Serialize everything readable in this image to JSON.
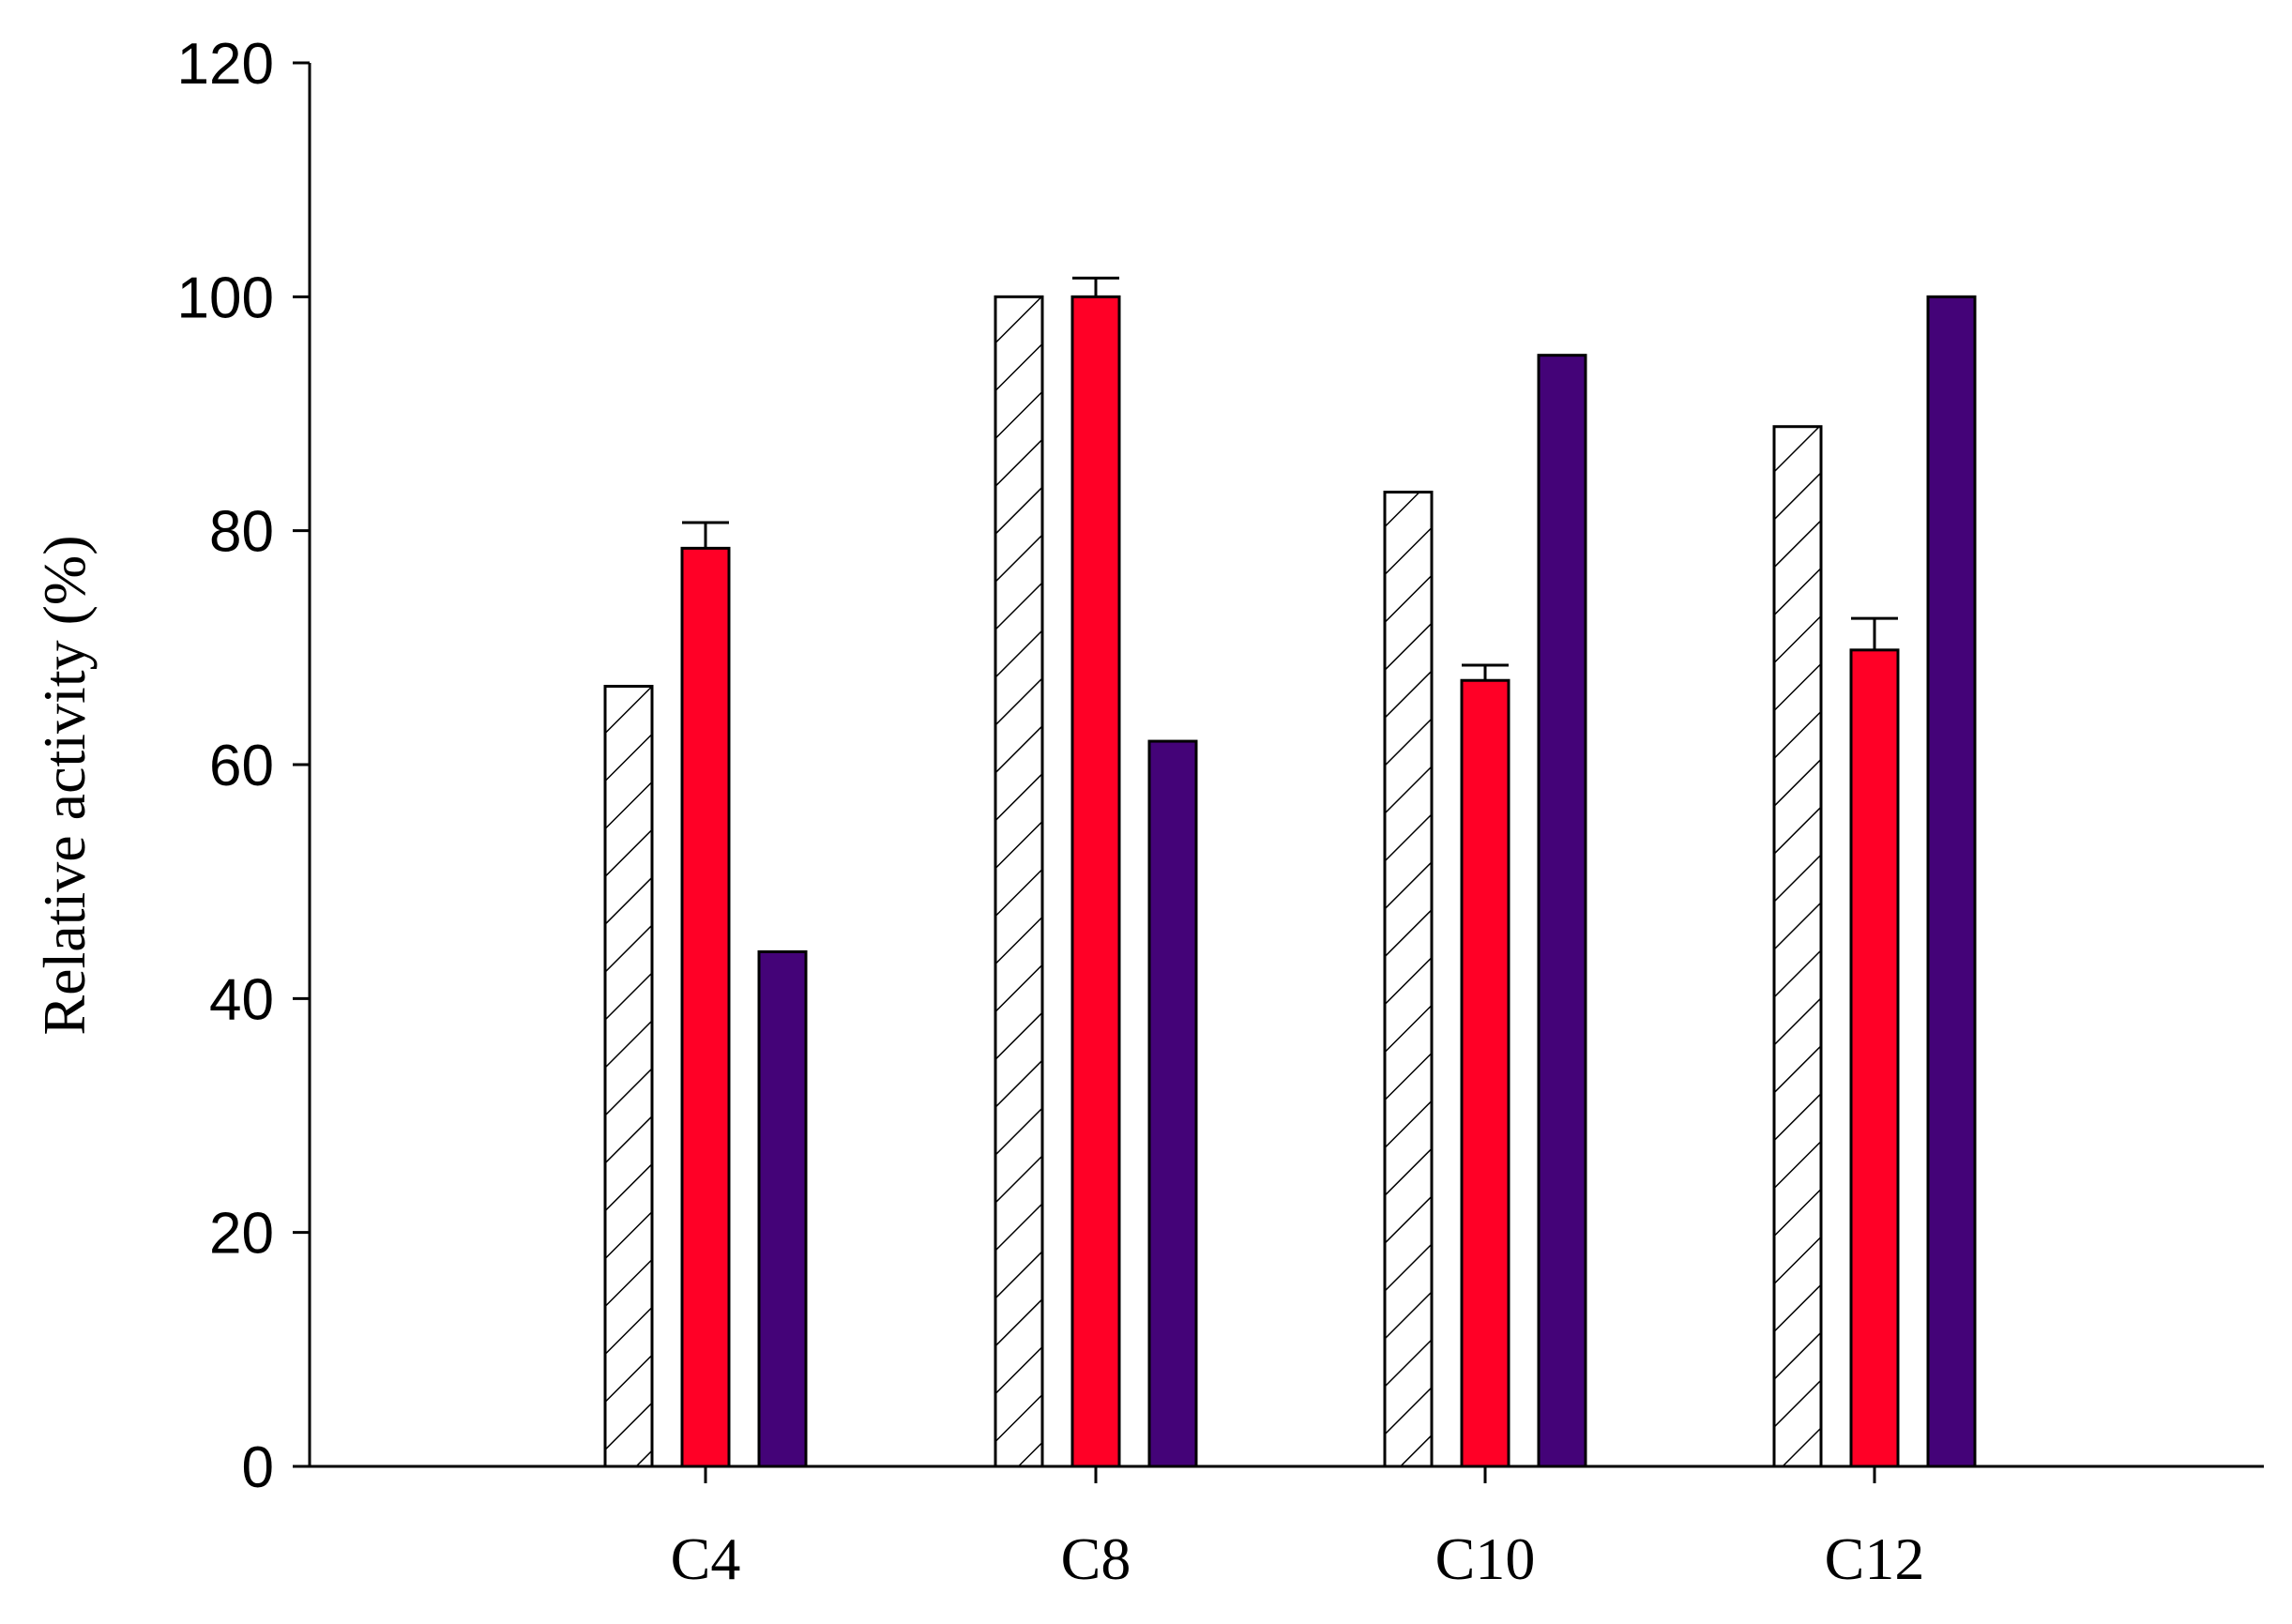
{
  "chart_data": {
    "type": "bar",
    "title": "",
    "xlabel": "",
    "ylabel": "Relative activity (%)",
    "ylim": [
      0,
      120
    ],
    "yticks": [
      0,
      20,
      40,
      60,
      80,
      100,
      120
    ],
    "ytick_labels": [
      "0",
      "20",
      "40",
      "60",
      "80",
      "100",
      "120"
    ],
    "grid": false,
    "legend": "none",
    "categories": [
      "C4",
      "C8",
      "C10",
      "C12"
    ],
    "series": [
      {
        "name": "series-1",
        "fill": "hatched",
        "color": "#ffffff",
        "values": [
          66.7,
          100,
          83.3,
          88.9
        ],
        "errors": [
          0,
          0,
          0,
          0
        ]
      },
      {
        "name": "series-2",
        "fill": "solid",
        "color": "#ff0026",
        "values": [
          78.5,
          100,
          67.2,
          69.8
        ],
        "errors": [
          2.2,
          1.6,
          1.3,
          2.7
        ]
      },
      {
        "name": "series-3",
        "fill": "solid",
        "color": "#440378",
        "values": [
          44,
          62,
          95,
          100
        ],
        "errors": [
          0,
          0,
          0,
          0
        ]
      }
    ]
  }
}
